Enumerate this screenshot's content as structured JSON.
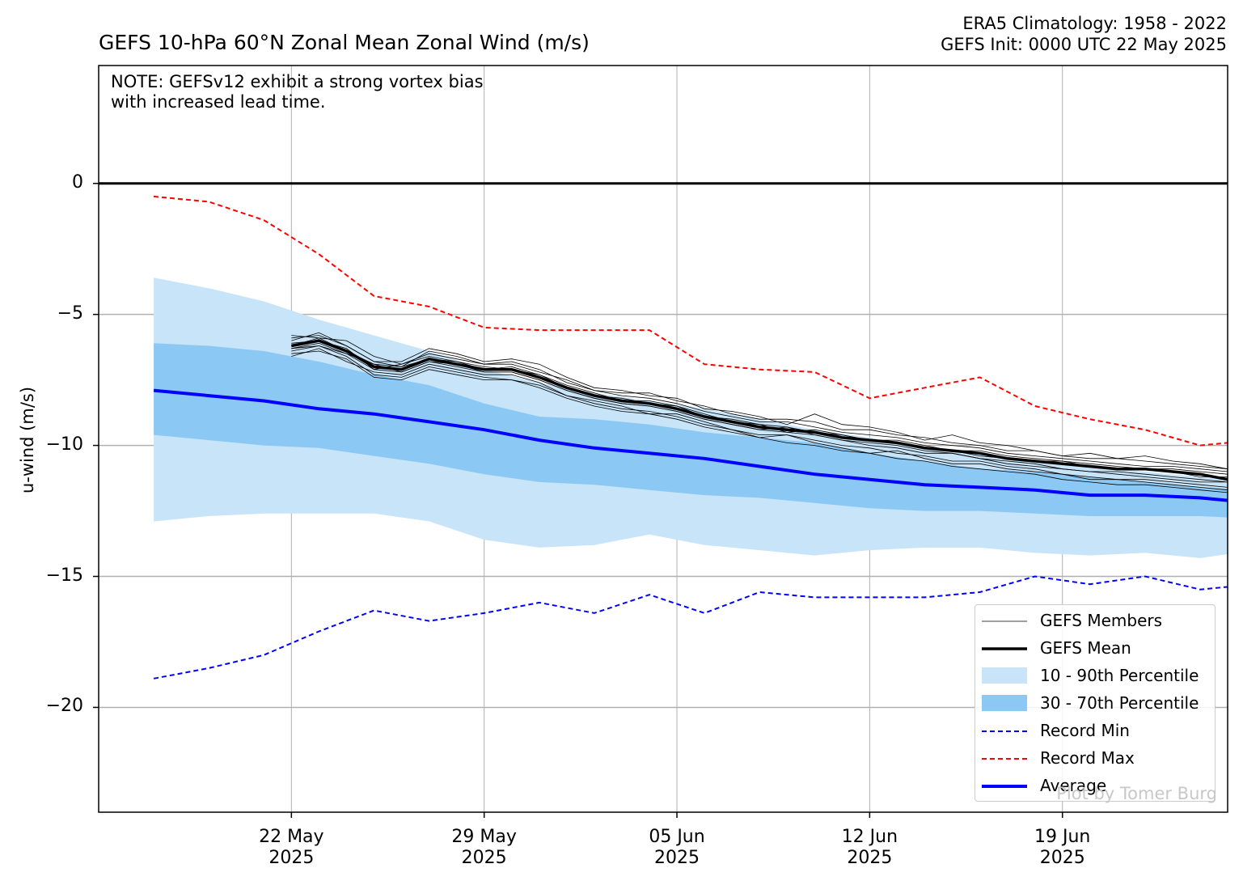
{
  "header": {
    "title": "GEFS 10-hPa 60°N Zonal Mean Zonal Wind (m/s)",
    "climatology": "ERA5 Climatology: 1958 - 2022",
    "init": "GEFS Init: 0000 UTC 22 May 2025"
  },
  "note": {
    "line1": "NOTE: GEFSv12 exhibit a strong vortex bias",
    "line2": "with increased lead time."
  },
  "credit": "Plot by Tomer Burg",
  "colors": {
    "members": "#000000",
    "mean": "#000000",
    "p10_90": "#c8e4f8",
    "p30_70": "#8cc8f4",
    "record_min": "#0000ff",
    "record_max": "#ff0000",
    "average": "#0000ff",
    "zero_line": "#000000",
    "grid": "#b0b0b0"
  },
  "legend": {
    "placement": "lower-right",
    "items": [
      {
        "label": "GEFS Members",
        "key": "members"
      },
      {
        "label": "GEFS Mean",
        "key": "mean"
      },
      {
        "label": "10 - 90th Percentile",
        "key": "p10_90"
      },
      {
        "label": "30 - 70th Percentile",
        "key": "p30_70"
      },
      {
        "label": "Record Min",
        "key": "record_min"
      },
      {
        "label": "Record Max",
        "key": "record_max"
      },
      {
        "label": "Average",
        "key": "average"
      }
    ]
  },
  "chart_data": {
    "type": "line",
    "title": "GEFS 10-hPa 60°N Zonal Mean Zonal Wind (m/s)",
    "ylabel": "u-wind (m/s)",
    "xlabel": "",
    "x_start": "2025-05-15",
    "x_end": "2025-06-25",
    "ylim": [
      -24,
      4.5
    ],
    "grid": true,
    "x_ticks": [
      {
        "date": "2025-05-22",
        "line1": "22 May",
        "line2": "2025"
      },
      {
        "date": "2025-05-29",
        "line1": "29 May",
        "line2": "2025"
      },
      {
        "date": "2025-06-05",
        "line1": "05 Jun",
        "line2": "2025"
      },
      {
        "date": "2025-06-12",
        "line1": "12 Jun",
        "line2": "2025"
      },
      {
        "date": "2025-06-19",
        "line1": "19 Jun",
        "line2": "2025"
      }
    ],
    "y_ticks": [
      0,
      -5,
      -10,
      -15,
      -20
    ],
    "y_tick_labels": [
      "0",
      "−5",
      "−10",
      "−15",
      "−20"
    ],
    "climatology_dates": [
      "2025-05-17",
      "2025-05-19",
      "2025-05-21",
      "2025-05-23",
      "2025-05-25",
      "2025-05-27",
      "2025-05-29",
      "2025-05-31",
      "2025-06-02",
      "2025-06-04",
      "2025-06-06",
      "2025-06-08",
      "2025-06-10",
      "2025-06-12",
      "2025-06-14",
      "2025-06-16",
      "2025-06-18",
      "2025-06-20",
      "2025-06-22",
      "2025-06-24",
      "2025-06-26"
    ],
    "series": [
      {
        "name": "Average",
        "values": [
          -7.9,
          -8.1,
          -8.3,
          -8.6,
          -8.8,
          -9.1,
          -9.4,
          -9.8,
          -10.1,
          -10.3,
          -10.5,
          -10.8,
          -11.1,
          -11.3,
          -11.5,
          -11.6,
          -11.7,
          -11.9,
          -11.9,
          -12.0,
          -12.2
        ]
      },
      {
        "name": "Record Max",
        "values": [
          -0.5,
          -0.7,
          -1.4,
          -2.7,
          -4.3,
          -4.7,
          -5.5,
          -5.6,
          -5.6,
          -5.6,
          -6.9,
          -7.1,
          -7.2,
          -8.2,
          -7.8,
          -7.4,
          -8.5,
          -9.0,
          -9.4,
          -10.0,
          -9.8
        ]
      },
      {
        "name": "Record Min",
        "values": [
          -18.9,
          -18.5,
          -18.0,
          -17.1,
          -16.3,
          -16.7,
          -16.4,
          -16.0,
          -16.4,
          -15.7,
          -16.4,
          -15.6,
          -15.8,
          -15.8,
          -15.8,
          -15.6,
          -15.0,
          -15.3,
          -15.0,
          -15.5,
          -15.3
        ]
      },
      {
        "name": "10th Percentile",
        "values": [
          -12.9,
          -12.7,
          -12.6,
          -12.6,
          -12.6,
          -12.9,
          -13.6,
          -13.9,
          -13.8,
          -13.4,
          -13.8,
          -14.0,
          -14.2,
          -14.0,
          -13.9,
          -13.9,
          -14.1,
          -14.2,
          -14.1,
          -14.3,
          -14.0
        ]
      },
      {
        "name": "30th Percentile",
        "values": [
          -9.6,
          -9.8,
          -10.0,
          -10.1,
          -10.4,
          -10.7,
          -11.1,
          -11.4,
          -11.5,
          -11.7,
          -11.9,
          -12.0,
          -12.2,
          -12.4,
          -12.5,
          -12.5,
          -12.6,
          -12.7,
          -12.7,
          -12.7,
          -12.8
        ]
      },
      {
        "name": "70th Percentile",
        "values": [
          -6.1,
          -6.2,
          -6.4,
          -6.8,
          -7.3,
          -7.7,
          -8.4,
          -8.9,
          -9.0,
          -9.2,
          -9.5,
          -9.7,
          -9.9,
          -10.3,
          -10.6,
          -10.9,
          -11.0,
          -11.2,
          -11.4,
          -11.6,
          -11.7
        ]
      },
      {
        "name": "90th Percentile",
        "values": [
          -3.6,
          -4.0,
          -4.5,
          -5.2,
          -5.8,
          -6.4,
          -7.1,
          -7.6,
          -8.0,
          -8.3,
          -8.6,
          -9.0,
          -9.4,
          -9.7,
          -10.1,
          -10.3,
          -10.6,
          -10.8,
          -11.0,
          -11.2,
          -11.3
        ]
      }
    ],
    "gefs_dates": [
      "2025-05-22",
      "2025-05-23",
      "2025-05-24",
      "2025-05-25",
      "2025-05-26",
      "2025-05-27",
      "2025-05-28",
      "2025-05-29",
      "2025-05-30",
      "2025-05-31",
      "2025-06-01",
      "2025-06-02",
      "2025-06-03",
      "2025-06-04",
      "2025-06-05",
      "2025-06-06",
      "2025-06-07",
      "2025-06-08",
      "2025-06-09",
      "2025-06-10",
      "2025-06-11",
      "2025-06-12",
      "2025-06-13",
      "2025-06-14",
      "2025-06-15",
      "2025-06-16",
      "2025-06-17",
      "2025-06-18",
      "2025-06-19",
      "2025-06-20",
      "2025-06-21",
      "2025-06-22",
      "2025-06-23",
      "2025-06-24",
      "2025-06-25"
    ],
    "gefs_mean": [
      -6.2,
      -6.0,
      -6.4,
      -7.0,
      -7.1,
      -6.7,
      -6.9,
      -7.1,
      -7.1,
      -7.4,
      -7.8,
      -8.1,
      -8.3,
      -8.4,
      -8.6,
      -8.9,
      -9.1,
      -9.3,
      -9.4,
      -9.5,
      -9.7,
      -9.8,
      -9.9,
      -10.1,
      -10.2,
      -10.3,
      -10.5,
      -10.6,
      -10.7,
      -10.8,
      -10.9,
      -10.9,
      -11.0,
      -11.1,
      -11.3
    ],
    "gefs_members": [
      [
        -6.0,
        -5.7,
        -6.2,
        -6.8,
        -6.8,
        -6.3,
        -6.5,
        -6.8,
        -6.7,
        -6.9,
        -7.4,
        -7.8,
        -7.9,
        -8.1,
        -8.2,
        -8.6,
        -8.7,
        -8.9,
        -9.2,
        -8.8,
        -9.2,
        -9.3,
        -9.5,
        -9.8,
        -9.6,
        -9.9,
        -10.0,
        -10.2,
        -10.4,
        -10.3,
        -10.5,
        -10.4,
        -10.6,
        -10.7,
        -10.9
      ],
      [
        -6.4,
        -6.2,
        -6.6,
        -7.3,
        -7.4,
        -7.0,
        -7.2,
        -7.4,
        -7.5,
        -7.7,
        -8.1,
        -8.4,
        -8.6,
        -8.7,
        -8.9,
        -9.2,
        -9.4,
        -9.7,
        -9.6,
        -9.9,
        -10.1,
        -10.3,
        -10.2,
        -10.5,
        -10.7,
        -10.7,
        -10.9,
        -11.0,
        -11.1,
        -11.3,
        -11.3,
        -11.4,
        -11.5,
        -11.6,
        -11.7
      ],
      [
        -5.8,
        -5.9,
        -6.0,
        -6.6,
        -6.9,
        -6.5,
        -6.7,
        -6.9,
        -6.9,
        -7.2,
        -7.5,
        -7.9,
        -8.0,
        -8.0,
        -8.3,
        -8.5,
        -8.8,
        -9.0,
        -9.0,
        -9.1,
        -9.4,
        -9.4,
        -9.6,
        -9.7,
        -9.9,
        -10.0,
        -10.2,
        -10.2,
        -10.4,
        -10.5,
        -10.5,
        -10.6,
        -10.7,
        -10.8,
        -10.9
      ],
      [
        -6.6,
        -6.3,
        -6.8,
        -7.2,
        -7.3,
        -6.9,
        -7.1,
        -7.3,
        -7.3,
        -7.6,
        -8.1,
        -8.3,
        -8.5,
        -8.8,
        -8.8,
        -9.1,
        -9.4,
        -9.6,
        -9.6,
        -9.8,
        -10.0,
        -10.1,
        -10.3,
        -10.4,
        -10.6,
        -10.6,
        -10.8,
        -10.9,
        -11.1,
        -11.2,
        -11.3,
        -11.3,
        -11.4,
        -11.5,
        -11.6
      ],
      [
        -6.1,
        -6.0,
        -6.3,
        -7.1,
        -6.9,
        -6.6,
        -6.8,
        -7.1,
        -7.0,
        -7.3,
        -7.7,
        -8.0,
        -8.3,
        -8.3,
        -8.5,
        -8.9,
        -9.0,
        -9.2,
        -9.5,
        -9.4,
        -9.6,
        -9.8,
        -9.9,
        -10.1,
        -10.2,
        -10.4,
        -10.5,
        -10.6,
        -10.6,
        -10.8,
        -10.9,
        -10.9,
        -11.0,
        -11.2,
        -11.2
      ],
      [
        -6.3,
        -6.1,
        -6.5,
        -6.9,
        -7.2,
        -6.8,
        -6.9,
        -7.2,
        -7.2,
        -7.5,
        -7.9,
        -8.2,
        -8.4,
        -8.5,
        -8.7,
        -9.0,
        -9.2,
        -9.4,
        -9.3,
        -9.6,
        -9.8,
        -9.9,
        -10.0,
        -10.2,
        -10.3,
        -10.5,
        -10.6,
        -10.7,
        -10.9,
        -11.0,
        -11.0,
        -11.1,
        -11.2,
        -11.3,
        -11.4
      ],
      [
        -5.9,
        -5.8,
        -6.2,
        -6.8,
        -7.0,
        -6.4,
        -6.6,
        -6.9,
        -6.8,
        -7.1,
        -7.6,
        -7.9,
        -8.1,
        -8.2,
        -8.4,
        -8.7,
        -8.9,
        -9.1,
        -9.1,
        -9.3,
        -9.5,
        -9.6,
        -9.7,
        -9.9,
        -10.0,
        -10.1,
        -10.3,
        -10.4,
        -10.5,
        -10.6,
        -10.7,
        -10.8,
        -10.8,
        -10.9,
        -11.0
      ],
      [
        -6.5,
        -6.4,
        -6.7,
        -7.4,
        -7.5,
        -7.1,
        -7.3,
        -7.5,
        -7.5,
        -7.8,
        -8.2,
        -8.5,
        -8.7,
        -8.8,
        -9.0,
        -9.3,
        -9.5,
        -9.7,
        -9.9,
        -10.0,
        -10.2,
        -10.3,
        -10.5,
        -10.6,
        -10.8,
        -10.9,
        -11.0,
        -11.1,
        -11.3,
        -11.4,
        -11.5,
        -11.5,
        -11.6,
        -11.7,
        -11.8
      ],
      [
        -6.2,
        -5.9,
        -6.4,
        -6.9,
        -7.0,
        -6.7,
        -6.8,
        -7.0,
        -7.1,
        -7.3,
        -7.8,
        -8.1,
        -8.2,
        -8.4,
        -8.5,
        -8.8,
        -9.1,
        -9.2,
        -9.3,
        -9.5,
        -9.6,
        -9.8,
        -9.8,
        -10.0,
        -10.2,
        -10.2,
        -10.4,
        -10.5,
        -10.6,
        -10.7,
        -10.8,
        -10.9,
        -10.9,
        -11.0,
        -11.1
      ],
      [
        -6.3,
        -6.2,
        -6.5,
        -7.1,
        -7.2,
        -6.8,
        -7.0,
        -7.2,
        -7.2,
        -7.5,
        -7.9,
        -8.2,
        -8.4,
        -8.5,
        -8.7,
        -9.0,
        -9.2,
        -9.4,
        -9.5,
        -9.6,
        -9.8,
        -10.0,
        -10.1,
        -10.3,
        -10.3,
        -10.5,
        -10.7,
        -10.8,
        -10.9,
        -11.0,
        -11.1,
        -11.2,
        -11.3,
        -11.4,
        -11.4
      ]
    ]
  }
}
